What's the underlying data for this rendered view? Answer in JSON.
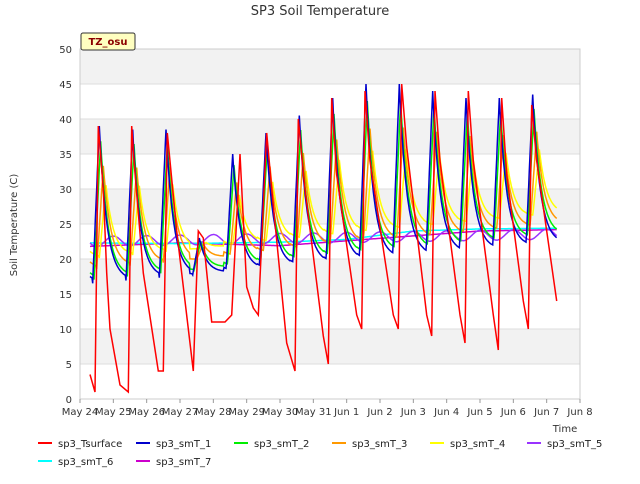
{
  "chart_data": {
    "type": "line",
    "title": "SP3 Soil Temperature",
    "ylabel": "Soil Temperature (C)",
    "xlabel": "Time",
    "ylim": [
      0,
      50
    ],
    "yticks": [
      0,
      5,
      10,
      15,
      20,
      25,
      30,
      35,
      40,
      45,
      50
    ],
    "xlim": [
      0,
      15
    ],
    "xticks": [
      {
        "pos": 0,
        "label": "May 24"
      },
      {
        "pos": 1,
        "label": "May 25"
      },
      {
        "pos": 2,
        "label": "May 26"
      },
      {
        "pos": 3,
        "label": "May 27"
      },
      {
        "pos": 4,
        "label": "May 28"
      },
      {
        "pos": 5,
        "label": "May 29"
      },
      {
        "pos": 6,
        "label": "May 30"
      },
      {
        "pos": 7,
        "label": "May 31"
      },
      {
        "pos": 8,
        "label": "Jun 1"
      },
      {
        "pos": 9,
        "label": "Jun 2"
      },
      {
        "pos": 10,
        "label": "Jun 3"
      },
      {
        "pos": 11,
        "label": "Jun 4"
      },
      {
        "pos": 12,
        "label": "Jun 5"
      },
      {
        "pos": 13,
        "label": "Jun 6"
      },
      {
        "pos": 14,
        "label": "Jun 7"
      },
      {
        "pos": 15,
        "label": "Jun 8"
      }
    ],
    "annotation": "TZ_osu",
    "days_start": 0.3,
    "days_end": 14.3,
    "daily_peaks": [
      39,
      38.5,
      38.5,
      23,
      35,
      38,
      40.5,
      43,
      45,
      45,
      44,
      43,
      43,
      43.5
    ],
    "series": [
      {
        "name": "sp3_Tsurface",
        "color": "#ff0000",
        "kind": "surface",
        "x": [
          0.3,
          0.45,
          0.55,
          0.7,
          0.8,
          0.9,
          1.2,
          1.45,
          1.55,
          1.62,
          1.9,
          2.35,
          2.5,
          2.62,
          2.9,
          3.4,
          3.55,
          3.7,
          3.95,
          4.15,
          4.35,
          4.55,
          4.8,
          5.0,
          5.2,
          5.35,
          5.6,
          5.75,
          6.2,
          6.45,
          6.55,
          6.75,
          7.3,
          7.45,
          7.55,
          7.7,
          8.3,
          8.45,
          8.55,
          8.7,
          9.4,
          9.55,
          9.65,
          9.8,
          10.4,
          10.55,
          10.65,
          10.8,
          11.4,
          11.55,
          11.65,
          11.8,
          12.4,
          12.55,
          12.65,
          12.8,
          13.3,
          13.45,
          13.55,
          13.7,
          14.3
        ],
        "y": [
          3.5,
          1,
          39,
          30,
          18,
          10,
          2,
          1,
          39,
          34,
          18,
          4,
          4,
          38,
          24,
          4,
          24,
          23,
          11,
          11,
          11,
          12,
          35,
          16,
          13,
          12,
          38,
          30,
          8,
          4,
          40,
          30,
          9,
          5,
          43,
          32,
          12,
          10,
          44,
          34,
          12,
          10,
          45,
          36,
          12,
          9,
          44,
          34,
          12,
          8,
          44,
          34,
          12,
          7,
          43,
          32,
          14,
          10,
          42,
          34,
          14
        ]
      },
      {
        "name": "sp3_smT_1",
        "color": "#0000cc",
        "kind": "smT",
        "lag": 0.08,
        "amp": 1.0,
        "min_base": 16.5,
        "min_rise": 0.4
      },
      {
        "name": "sp3_smT_2",
        "color": "#00ee00",
        "kind": "smT",
        "lag": 0.12,
        "amp": 0.9,
        "min_base": 17,
        "min_rise": 0.45
      },
      {
        "name": "sp3_smT_3",
        "color": "#ff9900",
        "kind": "smT",
        "lag": 0.2,
        "amp": 0.72,
        "min_base": 18.5,
        "min_rise": 0.45
      },
      {
        "name": "sp3_smT_4",
        "color": "#ffff00",
        "kind": "smT",
        "lag": 0.28,
        "amp": 0.55,
        "min_base": 20,
        "min_rise": 0.45
      },
      {
        "name": "sp3_smT_5",
        "color": "#9933ff",
        "kind": "slow",
        "base": 22.5,
        "rise": 0.3,
        "amp": 0.6
      },
      {
        "name": "sp3_smT_6",
        "color": "#00ffff",
        "kind": "trend",
        "x": [
          0.3,
          3,
          6,
          8,
          10,
          12,
          14.3
        ],
        "y": [
          22.3,
          22.2,
          22.4,
          22.8,
          24,
          24.3,
          24.4
        ]
      },
      {
        "name": "sp3_smT_7",
        "color": "#cc00cc",
        "kind": "trend",
        "x": [
          0.3,
          3,
          6,
          8,
          10,
          12,
          14.3
        ],
        "y": [
          21.8,
          22.3,
          21.9,
          22.6,
          23.3,
          24,
          24.2
        ]
      }
    ]
  }
}
